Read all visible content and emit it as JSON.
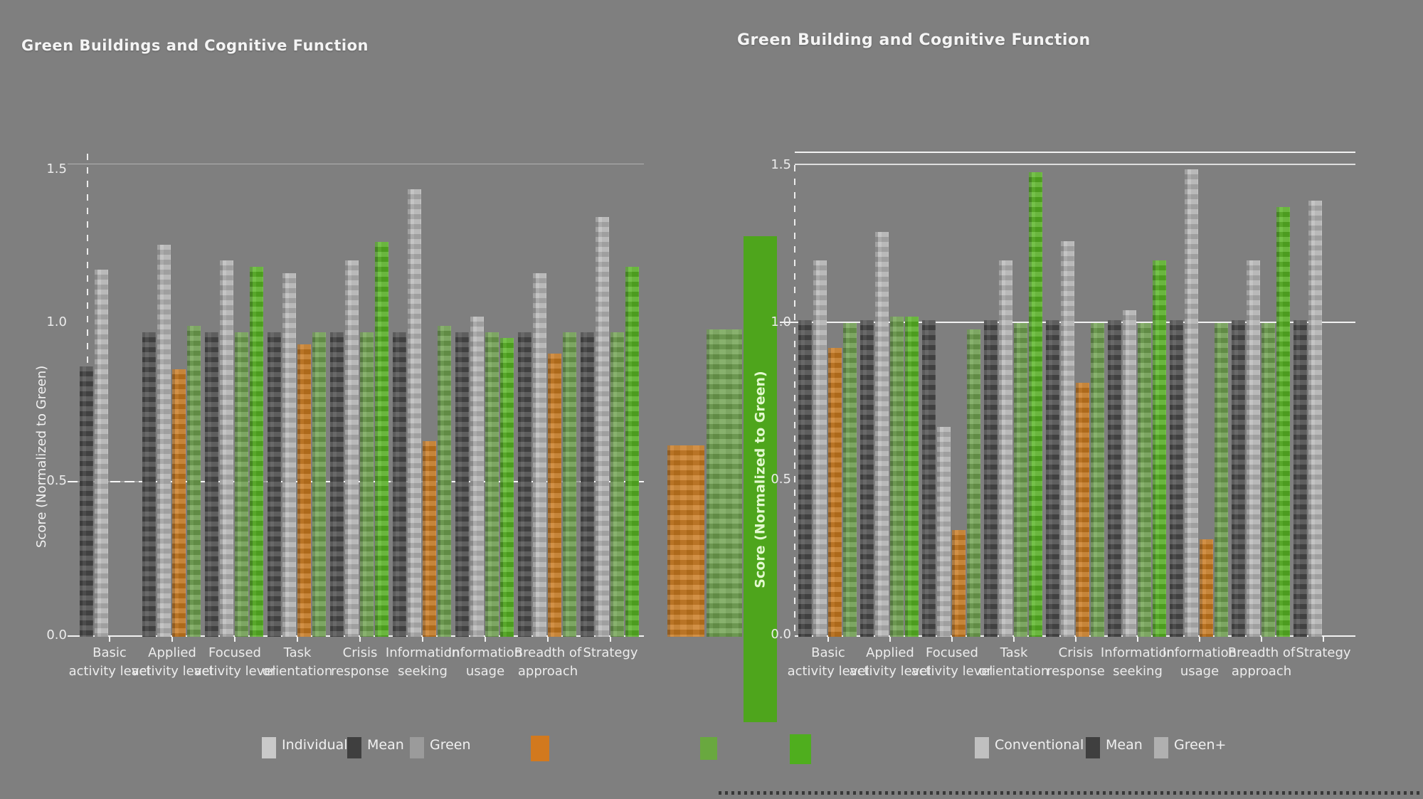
{
  "page": {
    "background_color": "#7f7f7f",
    "text_color": "#f4f4f4"
  },
  "chart_data": [
    {
      "type": "bar",
      "title": "Green Buildings and Cognitive Function",
      "ylabel": "Score (Normalized to Green)",
      "xlabel": "",
      "ylim": [
        0,
        1.5
      ],
      "yticks": [
        1.5,
        1.0,
        0.5,
        0.0
      ],
      "ytick_labels": [
        "1.5",
        "1.0",
        "0.5",
        "0.0"
      ],
      "reference_line": 0.5,
      "grid": false,
      "legend_position": "bottom",
      "categories": [
        {
          "label": "Basic activity level",
          "lines": [
            "Basic",
            "activity level"
          ]
        },
        {
          "label": "Applied activity level",
          "lines": [
            "Applied",
            "activity level"
          ]
        },
        {
          "label": "Focused activity level",
          "lines": [
            "Focused",
            "activity level"
          ]
        },
        {
          "label": "Task orientation",
          "lines": [
            "Task",
            "orientation"
          ]
        },
        {
          "label": "Crisis response",
          "lines": [
            "Crisis",
            "response"
          ]
        },
        {
          "label": "Information seeking",
          "lines": [
            "Information",
            "seeking"
          ]
        },
        {
          "label": "Information usage",
          "lines": [
            "Information",
            "usage"
          ]
        },
        {
          "label": "Breadth of approach",
          "lines": [
            "Breadth of",
            "approach"
          ]
        },
        {
          "label": "Strategy",
          "lines": [
            "Strategy"
          ]
        }
      ],
      "series": [
        {
          "name": "Mean",
          "key": "mean",
          "color": "#4a4a4a",
          "values": [
            0.87,
            0.98,
            0.98,
            0.98,
            0.98,
            0.98,
            0.98,
            0.98,
            0.98
          ]
        },
        {
          "name": "Individual",
          "key": "individual",
          "color": "#b8b8b8",
          "values": [
            1.18,
            1.26,
            1.21,
            1.17,
            1.21,
            1.44,
            1.03,
            1.17,
            1.35
          ]
        },
        {
          "name": "Conventional",
          "key": "conventional",
          "color": "#c8791f",
          "values": [
            null,
            0.86,
            null,
            0.94,
            null,
            0.63,
            null,
            0.91,
            null
          ]
        },
        {
          "name": "Green",
          "key": "green",
          "color": "#70a150",
          "values": [
            null,
            1.0,
            0.98,
            0.98,
            0.98,
            1.0,
            0.98,
            0.98,
            0.98
          ]
        },
        {
          "name": "Green+",
          "key": "green_plus",
          "color": "#58b424",
          "values": [
            null,
            null,
            1.19,
            null,
            1.27,
            null,
            0.96,
            null,
            1.19
          ]
        }
      ],
      "legend": {
        "entries": [
          {
            "label": "Individual",
            "color": "#c9c9c9"
          },
          {
            "label": "Mean",
            "color": "#3f3f3f"
          },
          {
            "label": "Green",
            "color": "#9b9b9b"
          }
        ],
        "extra_swatches": [
          {
            "name": "orange-swatch",
            "color": "#d2791e"
          },
          {
            "name": "green-swatch",
            "color": "#69a83f"
          }
        ]
      }
    },
    {
      "type": "bar",
      "title": "Green Building and Cognitive Function",
      "ylabel": "Score (Normalized to Green)",
      "ylabel_bg": "#4ea51c",
      "ylabel_text_color": "#e2f9cf",
      "xlabel": "",
      "ylim": [
        0,
        1.5
      ],
      "yticks": [
        1.5,
        1.0,
        0.5,
        0.0
      ],
      "ytick_labels": [
        "1.5",
        "1.0",
        "0.5",
        "0.0"
      ],
      "reference_line": 1.0,
      "top_line": 1.5,
      "grid": false,
      "legend_position": "bottom",
      "categories": [
        {
          "label": "Basic activity level",
          "lines": [
            "Basic",
            "activity level"
          ]
        },
        {
          "label": "Applied activity level",
          "lines": [
            "Applied",
            "activity level"
          ]
        },
        {
          "label": "Focused activity level",
          "lines": [
            "Focused",
            "activity level"
          ]
        },
        {
          "label": "Task orientation",
          "lines": [
            "Task",
            "orientation"
          ]
        },
        {
          "label": "Crisis response",
          "lines": [
            "Crisis",
            "response"
          ]
        },
        {
          "label": "Information seeking",
          "lines": [
            "Information",
            "seeking"
          ]
        },
        {
          "label": "Information usage",
          "lines": [
            "Information",
            "usage"
          ]
        },
        {
          "label": "Breadth of approach",
          "lines": [
            "Breadth of",
            "approach"
          ]
        },
        {
          "label": "Strategy",
          "lines": [
            "Strategy"
          ]
        }
      ],
      "series": [
        {
          "name": "Mean",
          "key": "mean",
          "color": "#4a4a4a",
          "values": [
            1.01,
            1.01,
            1.01,
            1.01,
            1.01,
            1.01,
            1.01,
            1.01,
            1.01
          ]
        },
        {
          "name": "Individual",
          "key": "individual",
          "color": "#b8b8b8",
          "values": [
            1.2,
            1.29,
            0.67,
            1.2,
            1.26,
            1.04,
            1.49,
            1.2,
            1.39
          ]
        },
        {
          "name": "Conventional",
          "key": "conventional",
          "color": "#c8791f",
          "values": [
            0.92,
            null,
            0.34,
            null,
            0.81,
            null,
            0.31,
            null,
            null
          ]
        },
        {
          "name": "Green",
          "key": "green",
          "color": "#70a150",
          "values": [
            1.0,
            1.02,
            0.98,
            1.0,
            1.0,
            1.0,
            1.0,
            1.0,
            null
          ]
        },
        {
          "name": "Green+",
          "key": "green_plus",
          "color": "#58b424",
          "values": [
            null,
            1.02,
            null,
            1.48,
            null,
            1.2,
            null,
            1.37,
            null
          ]
        }
      ],
      "leading_group": {
        "conventional": 0.61,
        "green": 0.98,
        "green_plus": 1.24
      },
      "legend": {
        "extra_swatches": [
          {
            "name": "green-swatch",
            "color": "#4fae1e"
          }
        ],
        "entries": [
          {
            "label": "Conventional",
            "color": "#c0c0c0"
          },
          {
            "label": "Mean",
            "color": "#3f3f3f"
          },
          {
            "label": "Green+",
            "color": "#b0b0b0"
          }
        ]
      }
    }
  ],
  "footer_divider": {
    "color": "#383838"
  }
}
